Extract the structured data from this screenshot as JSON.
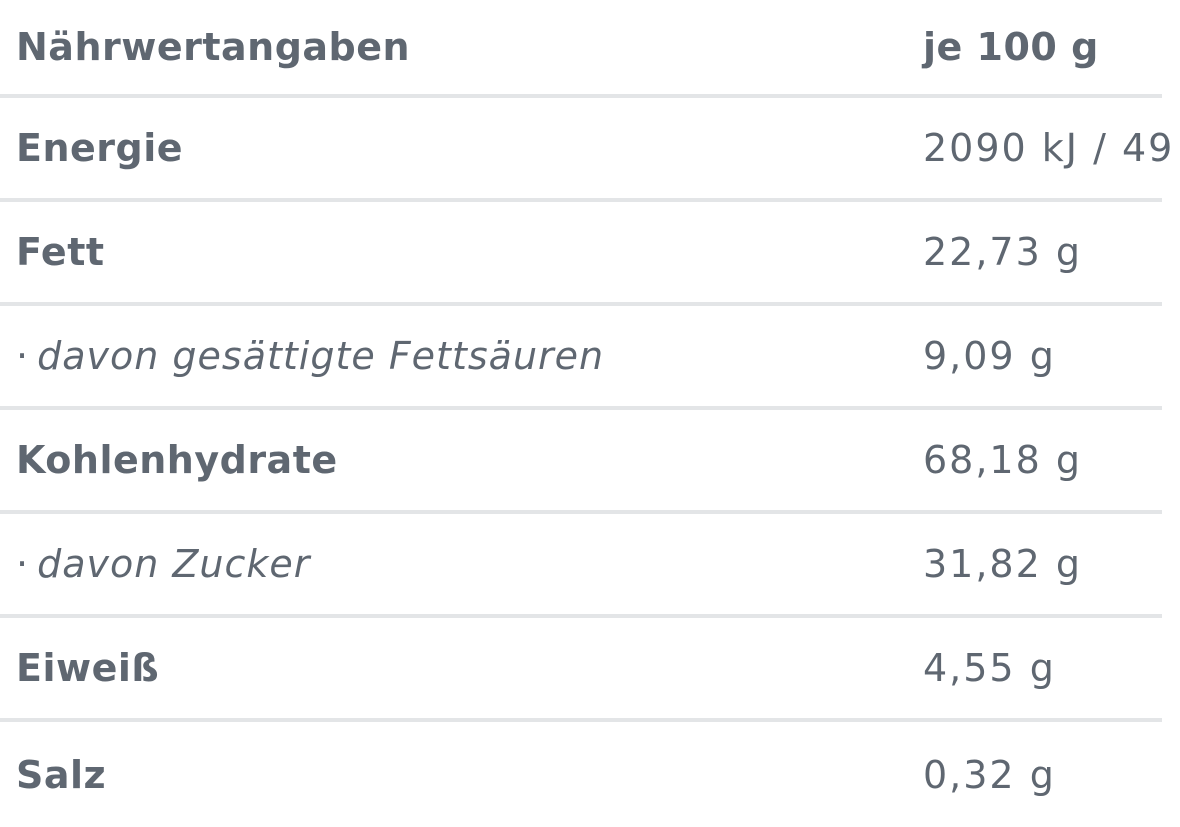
{
  "header": {
    "label": "Nährwertangaben",
    "value": "je 100 g"
  },
  "rows": [
    {
      "bullet": "",
      "label": "Energie",
      "value": "2090 kJ / 49"
    },
    {
      "bullet": "",
      "label": "Fett",
      "value": "22,73 g"
    },
    {
      "bullet": "·",
      "label": "davon gesättigte Fettsäuren",
      "value": "9,09 g"
    },
    {
      "bullet": "",
      "label": "Kohlenhydrate",
      "value": "68,18 g"
    },
    {
      "bullet": "·",
      "label": "davon Zucker",
      "value": "31,82 g"
    },
    {
      "bullet": "",
      "label": "Eiweiß",
      "value": "4,55 g"
    },
    {
      "bullet": "",
      "label": "Salz",
      "value": "0,32 g"
    }
  ]
}
